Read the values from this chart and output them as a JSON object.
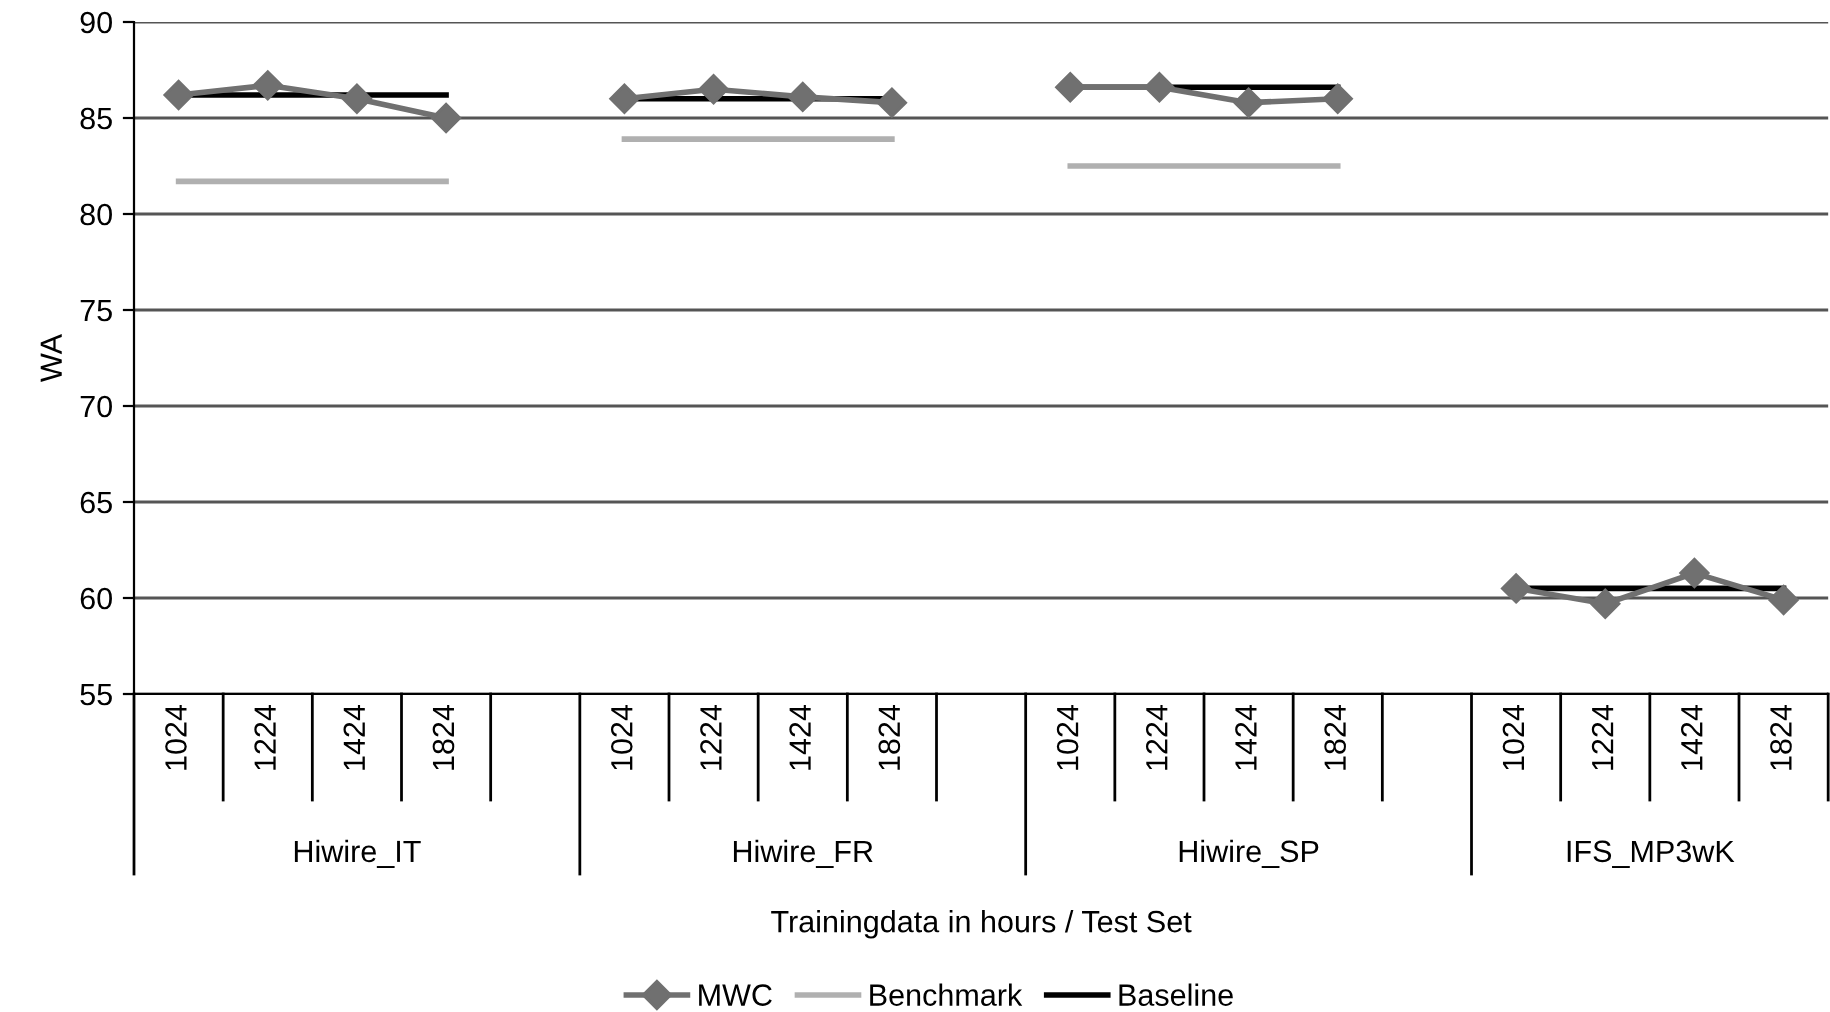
{
  "chart_data": {
    "type": "line",
    "xlabel": "Trainingdata in hours / Test Set",
    "ylabel": "WA",
    "categories": [
      "1024",
      "1224",
      "1424",
      "1824",
      null,
      "1024",
      "1224",
      "1424",
      "1824",
      null,
      "1024",
      "1224",
      "1424",
      "1824",
      null,
      "1024",
      "1224",
      "1424",
      "1824"
    ],
    "annotations": [
      "Hiwire_IT",
      "Hiwire_FR",
      "Hiwire_SP",
      "IFS_MP3wK"
    ],
    "series": [
      {
        "name": "MWC",
        "color": "#707070",
        "marker": "diamond",
        "values": [
          86.2,
          86.7,
          86.0,
          85.0,
          null,
          86.0,
          86.5,
          86.1,
          85.8,
          null,
          86.6,
          86.6,
          85.8,
          86.0,
          null,
          60.5,
          59.7,
          61.3,
          59.9
        ]
      },
      {
        "name": "Benchmark",
        "color": "#b0b0b0",
        "marker": "none",
        "values": [
          81.7,
          81.7,
          81.7,
          81.7,
          null,
          83.9,
          83.9,
          83.9,
          83.9,
          null,
          82.5,
          82.5,
          82.5,
          82.5,
          null,
          null,
          null,
          null,
          null
        ]
      },
      {
        "name": "Baseline",
        "color": "#000000",
        "marker": "none",
        "values": [
          86.2,
          86.2,
          86.2,
          86.2,
          null,
          86.0,
          86.0,
          86.0,
          86.0,
          null,
          86.6,
          86.6,
          86.6,
          86.6,
          null,
          60.5,
          60.5,
          60.5,
          60.5
        ]
      }
    ],
    "ylim": [
      55,
      90
    ],
    "yticks": [
      55,
      60,
      65,
      70,
      75,
      80,
      85,
      90
    ],
    "grid": "y",
    "legend": "bottom"
  }
}
